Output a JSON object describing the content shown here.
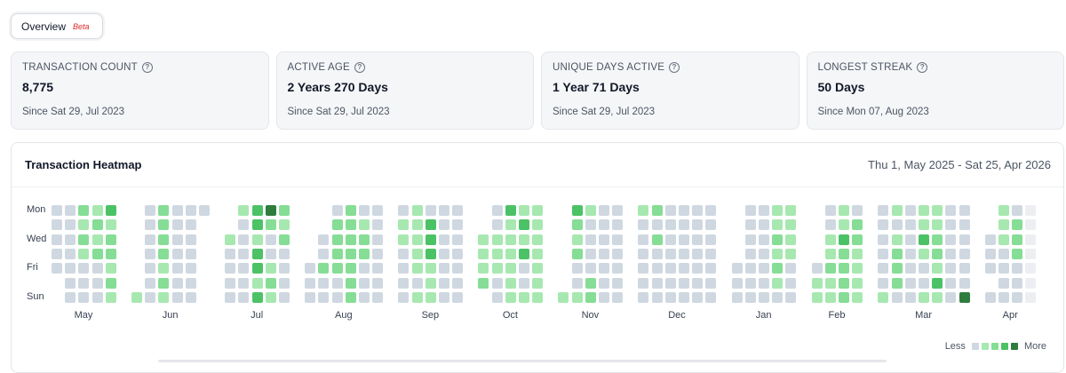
{
  "tab": {
    "label": "Overview",
    "badge": "Beta"
  },
  "stats": [
    {
      "label": "TRANSACTION COUNT",
      "value": "8,775",
      "sub": "Since Sat 29, Jul 2023"
    },
    {
      "label": "ACTIVE AGE",
      "value": "2 Years 270 Days",
      "sub": "Since Sat 29, Jul 2023"
    },
    {
      "label": "UNIQUE DAYS ACTIVE",
      "value": "1 Year 71 Days",
      "sub": "Since Sat 29, Jul 2023"
    },
    {
      "label": "LONGEST STREAK",
      "value": "50 Days",
      "sub": "Since Mon 07, Aug 2023"
    }
  ],
  "heatmap": {
    "title": "Transaction Heatmap",
    "range": "Thu 1, May 2025 - Sat 25, Apr 2026",
    "day_labels": [
      "Mon",
      "Wed",
      "Fri",
      "Sun"
    ],
    "legend": {
      "less": "Less",
      "more": "More"
    },
    "colors": [
      "#cfd8e1",
      "#a7e8b0",
      "#86dd95",
      "#4cc266",
      "#2e7d3e",
      "#eceef1"
    ],
    "chart_data": {
      "type": "heatmap",
      "months": [
        {
          "name": "May",
          "weeks": [
            "00000..",
            "0000000",
            "2121000",
            "1212000",
            "3122121"
          ]
        },
        {
          "name": "Jun",
          "weeks": [
            "......1",
            "0000000",
            "2222121",
            "0000000",
            "0000000",
            "0......"
          ]
        },
        {
          "name": "Jul",
          "weeks": [
            "..10000",
            "1000000",
            "3313313",
            "4200121",
            "2120000"
          ]
        },
        {
          "name": "Aug",
          "weeks": [
            "....000",
            "..00200",
            "0222200",
            "2222222",
            "0122000",
            "0000000"
          ]
        },
        {
          "name": "Sep",
          "weeks": [
            "0110000",
            "1111101",
            "0333111",
            "0000000",
            "0000000"
          ]
        },
        {
          "name": "Oct",
          "weeks": [
            "..1112.",
            "0011100",
            "3111111",
            "1313001",
            "1111111"
          ]
        },
        {
          "name": "Nov",
          "weeks": [
            "......1",
            "3212001",
            "1000022",
            "0000000",
            "0000000"
          ]
        },
        {
          "name": "Dec",
          "weeks": [
            "1000000",
            "2020000",
            "0000000",
            "0000000",
            "0000000",
            "0000000"
          ]
        },
        {
          "name": "Jan",
          "weeks": [
            "....000",
            "0000000",
            "0000000",
            "1121210",
            "1111000"
          ]
        },
        {
          "name": "Feb",
          "weeks": [
            "....011",
            "0011211",
            "1132222",
            "0221111"
          ]
        },
        {
          "name": "Mar",
          "weeks": [
            "0000001",
            "1012220",
            "0000000",
            "1131001",
            "1122131",
            "0000000",
            "0000004"
          ]
        },
        {
          "name": "Apr",
          "weeks": [
            "..000.0",
            "1110000",
            "0222000",
            "5555555"
          ]
        }
      ]
    }
  }
}
